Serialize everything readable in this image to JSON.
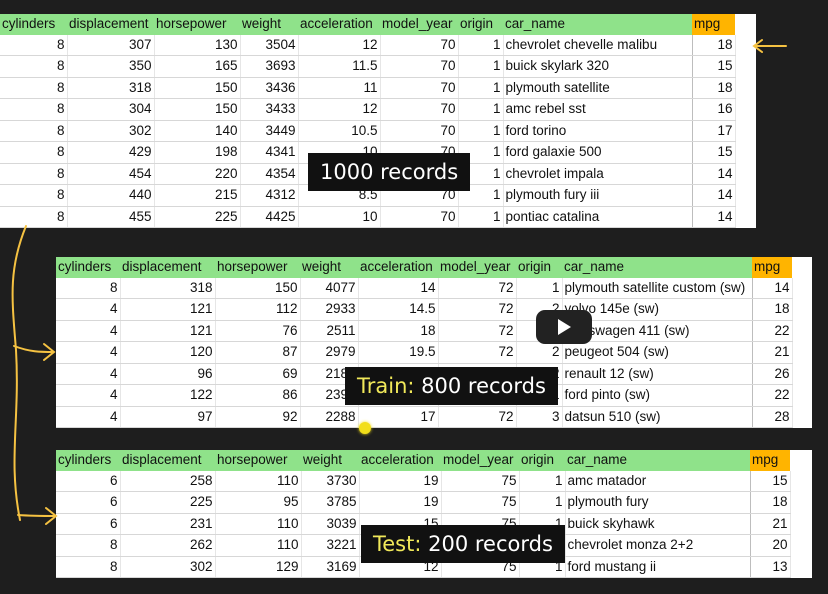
{
  "colors": {
    "header_green": "#8fe28a",
    "mpg_orange": "#ffb400",
    "arrow": "#f5c242",
    "label_highlight": "#f1e95a",
    "background": "#1e1e1e"
  },
  "columns": [
    "cylinders",
    "displacement",
    "horsepower",
    "weight",
    "acceleration",
    "model_year",
    "origin",
    "car_name",
    "mpg"
  ],
  "tables": {
    "full": {
      "label": "1000 records",
      "rows": [
        [
          "8",
          "307",
          "130",
          "3504",
          "12",
          "70",
          "1",
          "chevrolet chevelle malibu",
          "18"
        ],
        [
          "8",
          "350",
          "165",
          "3693",
          "11.5",
          "70",
          "1",
          "buick skylark 320",
          "15"
        ],
        [
          "8",
          "318",
          "150",
          "3436",
          "11",
          "70",
          "1",
          "plymouth satellite",
          "18"
        ],
        [
          "8",
          "304",
          "150",
          "3433",
          "12",
          "70",
          "1",
          "amc rebel sst",
          "16"
        ],
        [
          "8",
          "302",
          "140",
          "3449",
          "10.5",
          "70",
          "1",
          "ford torino",
          "17"
        ],
        [
          "8",
          "429",
          "198",
          "4341",
          "10",
          "70",
          "1",
          "ford galaxie 500",
          "15"
        ],
        [
          "8",
          "454",
          "220",
          "4354",
          "9",
          "70",
          "1",
          "chevrolet impala",
          "14"
        ],
        [
          "8",
          "440",
          "215",
          "4312",
          "8.5",
          "70",
          "1",
          "plymouth fury iii",
          "14"
        ],
        [
          "8",
          "455",
          "225",
          "4425",
          "10",
          "70",
          "1",
          "pontiac catalina",
          "14"
        ]
      ]
    },
    "train": {
      "label_prefix": "Train:",
      "label_rest": " 800 records",
      "rows": [
        [
          "8",
          "318",
          "150",
          "4077",
          "14",
          "72",
          "1",
          "plymouth satellite custom (sw)",
          "14"
        ],
        [
          "4",
          "121",
          "112",
          "2933",
          "14.5",
          "72",
          "2",
          "volvo 145e (sw)",
          "18"
        ],
        [
          "4",
          "121",
          "76",
          "2511",
          "18",
          "72",
          "2",
          "volkswagen 411 (sw)",
          "22"
        ],
        [
          "4",
          "120",
          "87",
          "2979",
          "19.5",
          "72",
          "2",
          "peugeot 504 (sw)",
          "21"
        ],
        [
          "4",
          "96",
          "69",
          "2189",
          "18",
          "72",
          "2",
          "renault 12 (sw)",
          "26"
        ],
        [
          "4",
          "122",
          "86",
          "2395",
          "16",
          "72",
          "1",
          "ford pinto (sw)",
          "22"
        ],
        [
          "4",
          "97",
          "92",
          "2288",
          "17",
          "72",
          "3",
          "datsun 510 (sw)",
          "28"
        ]
      ]
    },
    "test": {
      "label_prefix": "Test:",
      "label_rest": " 200 records",
      "rows": [
        [
          "6",
          "258",
          "110",
          "3730",
          "19",
          "75",
          "1",
          "amc matador",
          "15"
        ],
        [
          "6",
          "225",
          "95",
          "3785",
          "19",
          "75",
          "1",
          "plymouth fury",
          "18"
        ],
        [
          "6",
          "231",
          "110",
          "3039",
          "15",
          "75",
          "1",
          "buick skyhawk",
          "21"
        ],
        [
          "8",
          "262",
          "110",
          "3221",
          "13.5",
          "75",
          "1",
          "chevrolet monza 2+2",
          "20"
        ],
        [
          "8",
          "302",
          "129",
          "3169",
          "12",
          "75",
          "1",
          "ford mustang ii",
          "13"
        ]
      ]
    }
  }
}
